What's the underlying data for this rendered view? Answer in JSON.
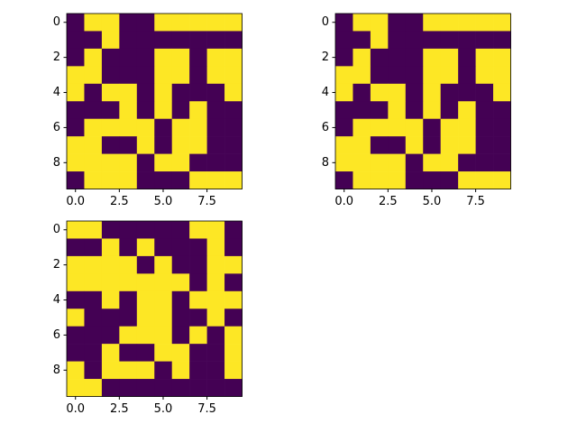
{
  "chart_data": [
    {
      "type": "heatmap",
      "colors": [
        "#440154",
        "#fde725"
      ],
      "values": [
        [
          0,
          1,
          1,
          0,
          0,
          1,
          1,
          1,
          1,
          1
        ],
        [
          0,
          0,
          1,
          0,
          0,
          0,
          0,
          0,
          0,
          0
        ],
        [
          0,
          1,
          0,
          0,
          0,
          1,
          1,
          0,
          1,
          1
        ],
        [
          1,
          1,
          0,
          0,
          0,
          1,
          1,
          0,
          1,
          1
        ],
        [
          1,
          0,
          1,
          1,
          0,
          1,
          0,
          0,
          0,
          1
        ],
        [
          0,
          0,
          0,
          1,
          0,
          1,
          0,
          1,
          0,
          0
        ],
        [
          0,
          1,
          1,
          1,
          1,
          0,
          1,
          1,
          0,
          0
        ],
        [
          1,
          1,
          0,
          0,
          1,
          0,
          1,
          1,
          0,
          0
        ],
        [
          1,
          1,
          1,
          1,
          0,
          1,
          1,
          0,
          0,
          0
        ],
        [
          0,
          1,
          1,
          1,
          0,
          0,
          0,
          1,
          1,
          1
        ]
      ],
      "xlim": [
        -0.5,
        9.5
      ],
      "ylim": [
        9.5,
        -0.5
      ],
      "xticks": [
        {
          "value": 0,
          "label": "0.0"
        },
        {
          "value": 2.5,
          "label": "2.5"
        },
        {
          "value": 5,
          "label": "5.0"
        },
        {
          "value": 7.5,
          "label": "7.5"
        }
      ],
      "yticks": [
        0,
        2,
        4,
        6,
        8
      ]
    },
    {
      "type": "heatmap",
      "colors": [
        "#440154",
        "#fde725"
      ],
      "values": [
        [
          0,
          1,
          1,
          0,
          0,
          1,
          1,
          1,
          1,
          1
        ],
        [
          0,
          0,
          1,
          0,
          0,
          0,
          0,
          0,
          0,
          0
        ],
        [
          0,
          1,
          0,
          0,
          0,
          1,
          1,
          0,
          1,
          1
        ],
        [
          1,
          1,
          0,
          0,
          0,
          1,
          1,
          0,
          1,
          1
        ],
        [
          1,
          0,
          1,
          1,
          0,
          1,
          0,
          0,
          0,
          1
        ],
        [
          0,
          0,
          0,
          1,
          0,
          1,
          0,
          1,
          0,
          0
        ],
        [
          0,
          1,
          1,
          1,
          1,
          0,
          1,
          1,
          0,
          0
        ],
        [
          1,
          1,
          0,
          0,
          1,
          0,
          1,
          1,
          0,
          0
        ],
        [
          1,
          1,
          1,
          1,
          0,
          1,
          1,
          0,
          0,
          0
        ],
        [
          0,
          1,
          1,
          1,
          0,
          0,
          0,
          1,
          1,
          1
        ]
      ],
      "xlim": [
        -0.5,
        9.5
      ],
      "ylim": [
        9.5,
        -0.5
      ],
      "xticks": [
        {
          "value": 0,
          "label": "0.0"
        },
        {
          "value": 2.5,
          "label": "2.5"
        },
        {
          "value": 5,
          "label": "5.0"
        },
        {
          "value": 7.5,
          "label": "7.5"
        }
      ],
      "yticks": [
        0,
        2,
        4,
        6,
        8
      ]
    },
    {
      "type": "heatmap",
      "colors": [
        "#440154",
        "#fde725"
      ],
      "values": [
        [
          1,
          1,
          0,
          0,
          0,
          0,
          0,
          1,
          1,
          0
        ],
        [
          0,
          0,
          1,
          0,
          1,
          0,
          0,
          0,
          1,
          0
        ],
        [
          1,
          1,
          1,
          1,
          0,
          1,
          0,
          0,
          1,
          1
        ],
        [
          1,
          1,
          1,
          1,
          1,
          1,
          1,
          0,
          1,
          0
        ],
        [
          0,
          0,
          1,
          0,
          1,
          1,
          0,
          1,
          1,
          1
        ],
        [
          1,
          0,
          0,
          0,
          1,
          1,
          0,
          0,
          1,
          0
        ],
        [
          0,
          0,
          0,
          1,
          1,
          1,
          0,
          1,
          0,
          1
        ],
        [
          0,
          0,
          1,
          0,
          0,
          1,
          1,
          0,
          0,
          1
        ],
        [
          1,
          0,
          1,
          1,
          1,
          0,
          1,
          0,
          0,
          1
        ],
        [
          1,
          1,
          0,
          0,
          0,
          0,
          0,
          0,
          0,
          0
        ]
      ],
      "xlim": [
        -0.5,
        9.5
      ],
      "ylim": [
        9.5,
        -0.5
      ],
      "xticks": [
        {
          "value": 0,
          "label": "0.0"
        },
        {
          "value": 2.5,
          "label": "2.5"
        },
        {
          "value": 5,
          "label": "5.0"
        },
        {
          "value": 7.5,
          "label": "7.5"
        }
      ],
      "yticks": [
        0,
        2,
        4,
        6,
        8
      ]
    }
  ]
}
